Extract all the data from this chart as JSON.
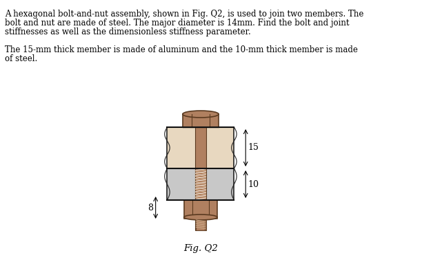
{
  "text_lines": [
    "A hexagonal bolt-and-nut assembly, shown in Fig. Q2, is used to join two members. The",
    "bolt and nut are made of steel. The major diameter is 14mm. Find the bolt and joint",
    "stiffnesses as well as the dimensionless stiffness parameter.",
    "",
    "The 15-mm thick member is made of aluminum and the 10-mm thick member is made",
    "of steel."
  ],
  "fig_label": "Fig. Q2",
  "dim_15": "15",
  "dim_10": "10",
  "dim_8": "8",
  "bg_color": "#ffffff",
  "bolt_color": "#b08060",
  "bolt_dark": "#8b6040",
  "member_top_color": "#e8d8c0",
  "member_bot_color": "#c8c8c8",
  "member_top_outline": "#222222",
  "thread_color": "#d0b090",
  "nut_color": "#b08060",
  "nut_dark": "#8b6040"
}
